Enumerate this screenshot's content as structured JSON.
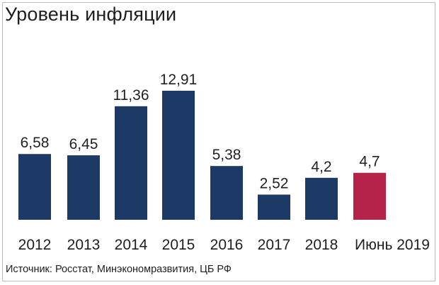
{
  "chart_data": {
    "type": "bar",
    "title": "Уровень инфляции",
    "categories": [
      "2012",
      "2013",
      "2014",
      "2015",
      "2016",
      "2017",
      "2018",
      "Июнь 2019"
    ],
    "values": [
      6.58,
      6.45,
      11.36,
      12.91,
      5.38,
      2.52,
      4.2,
      4.7
    ],
    "value_labels": [
      "6,58",
      "6,45",
      "11,36",
      "12,91",
      "5,38",
      "2,52",
      "4,2",
      "4,7"
    ],
    "bar_colors": [
      "#1d3a66",
      "#1d3a66",
      "#1d3a66",
      "#1d3a66",
      "#1d3a66",
      "#1d3a66",
      "#1d3a66",
      "#b5234b"
    ],
    "xlabel": "",
    "ylabel": "",
    "ylim": [
      0,
      12.91
    ],
    "grid": false,
    "legend": "none",
    "source": "Источник: Росстат, Минэкономразвития, ЦБ РФ"
  }
}
